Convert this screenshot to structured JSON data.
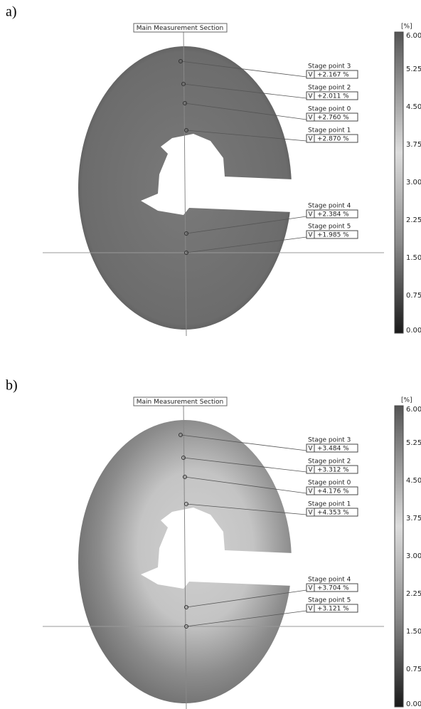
{
  "panels": [
    {
      "label": "a)",
      "section": "Main Measurement Section",
      "stage_points": [
        {
          "name": "Stage point 3",
          "component": "V",
          "value": "+2.167 %"
        },
        {
          "name": "Stage point 2",
          "component": "V",
          "value": "+2.011 %"
        },
        {
          "name": "Stage point 0",
          "component": "V",
          "value": "+2.760 %"
        },
        {
          "name": "Stage point 1",
          "component": "V",
          "value": "+2.870 %"
        },
        {
          "name": "Stage point 4",
          "component": "V",
          "value": "+2.384 %"
        },
        {
          "name": "Stage point 5",
          "component": "V",
          "value": "+1.985 %"
        }
      ],
      "colorbar": {
        "unit": "[%]",
        "ticks": [
          "6.00",
          "5.25",
          "4.50",
          "3.75",
          "3.00",
          "2.25",
          "1.50",
          "0.75",
          "0.00"
        ]
      }
    },
    {
      "label": "b)",
      "section": "Main Measurement Section",
      "stage_points": [
        {
          "name": "Stage point 3",
          "component": "V",
          "value": "+3.484 %"
        },
        {
          "name": "Stage point 2",
          "component": "V",
          "value": "+3.312 %"
        },
        {
          "name": "Stage point 0",
          "component": "V",
          "value": "+4.176 %"
        },
        {
          "name": "Stage point 1",
          "component": "V",
          "value": "+4.353 %"
        },
        {
          "name": "Stage point 4",
          "component": "V",
          "value": "+3.704 %"
        },
        {
          "name": "Stage point 5",
          "component": "V",
          "value": "+3.121 %"
        }
      ],
      "colorbar": {
        "unit": "[%]",
        "ticks": [
          "6.00",
          "5.25",
          "4.50",
          "3.75",
          "3.00",
          "2.25",
          "1.50",
          "0.75",
          "0.00"
        ]
      }
    }
  ]
}
